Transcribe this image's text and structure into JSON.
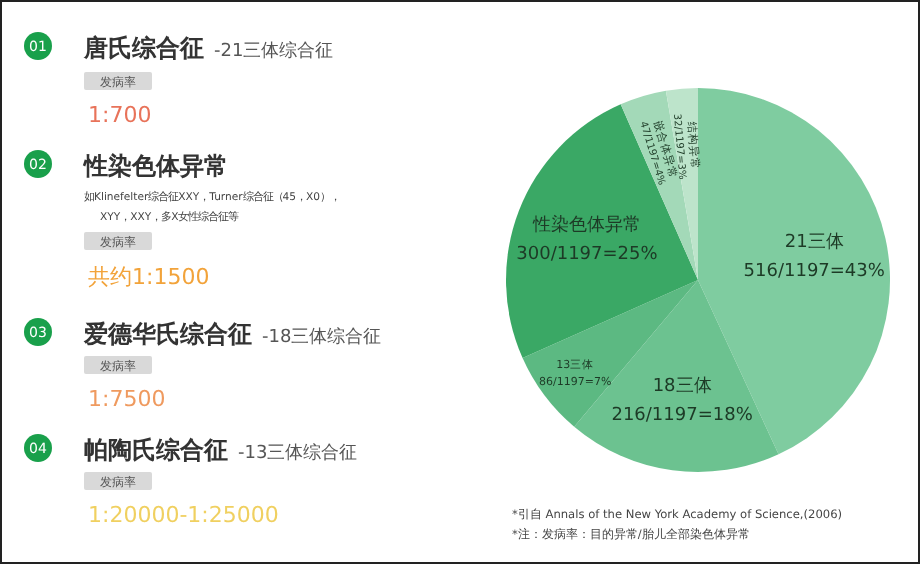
{
  "chart_data": {
    "type": "pie",
    "categories": [
      "21三体",
      "18三体",
      "13三体",
      "性染色体异常",
      "嵌合体异常",
      "结构异常"
    ],
    "values": [
      516,
      216,
      86,
      300,
      47,
      32
    ],
    "value_labels": [
      "516/1197=43%",
      "216/1197=18%",
      "86/1197=7%",
      "300/1197=25%",
      "47/1197=4%",
      "32/1197=3%"
    ],
    "colors": [
      "#7fcca0",
      "#6cc290",
      "#5cb982",
      "#3aa865",
      "#a3d9b8",
      "#bde4cb"
    ],
    "annotations": [
      "01",
      "唐氏综合征",
      "-21三体综合征",
      "发病率",
      "1:700",
      "02",
      "性染色体异常",
      "如Klinefelter综合征XXY，Turner综合征（45，X0），",
      "XYY，XXY，多X女性综合征等",
      "发病率",
      "共约1:1500",
      "03",
      "爱德华氏综合征",
      "-18三体综合征",
      "发病率",
      "1:7500",
      "04",
      "帕陶氏综合征",
      "-13三体综合征",
      "发病率",
      "1:20000-1:25000",
      "*引自 Annals of the New York Academy of Science,(2006)",
      "*注：发病率：目的异常/胎儿全部染色体异常"
    ]
  }
}
